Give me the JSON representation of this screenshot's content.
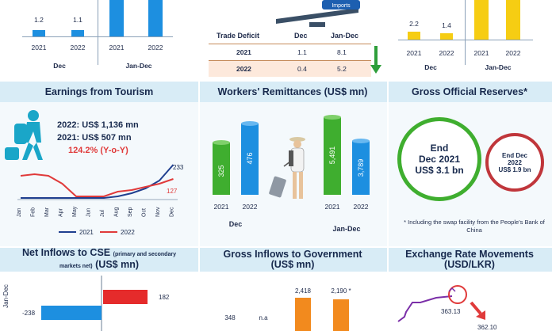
{
  "top": {
    "left_panel": {
      "small_values": [
        "1.2",
        "1.1"
      ],
      "years": [
        "2021",
        "2022",
        "2021",
        "2022"
      ],
      "group_labels": [
        "Dec",
        "Jan-Dec"
      ]
    },
    "right_panel": {
      "small_values": [
        "2.2",
        "1.4"
      ],
      "years": [
        "2021",
        "2022",
        "2021",
        "2022"
      ],
      "group_labels": [
        "Dec",
        "Jan-Dec"
      ]
    },
    "trade_table": {
      "headers": [
        "Trade Deficit",
        "Dec",
        "Jan-Dec"
      ],
      "rows": [
        {
          "year": "2021",
          "dec": "1.1",
          "jandec": "8.1"
        },
        {
          "year": "2022",
          "dec": "0.4",
          "jandec": "5.2"
        }
      ]
    },
    "scale_label": "Imports"
  },
  "tourism": {
    "title": "Earnings from Tourism",
    "stat_2022": "2022: US$ 1,136 mn",
    "stat_2021": "2021: US$ 507 mn",
    "growth": "124.2% (Y-o-Y)",
    "end_label_2021_line": "233",
    "end_label_2022_line": "127",
    "months": [
      "Jan",
      "Feb",
      "Mar",
      "Apr",
      "May",
      "Jun",
      "Jul",
      "Aug",
      "Sep",
      "Oct",
      "Nov",
      "Dec"
    ],
    "legend": [
      "2021",
      "2022"
    ],
    "colors": {
      "line_2021": "#1f3f8f",
      "line_2022": "#e03a3a"
    }
  },
  "remittances": {
    "title": "Workers' Remittances (US$ mn)",
    "values": [
      "325",
      "476",
      "5,491",
      "3,789"
    ],
    "years": [
      "2021",
      "2022",
      "2021",
      "2022"
    ],
    "groups": [
      "Dec",
      "Jan-Dec"
    ],
    "colors": {
      "green": "#3fae2f",
      "blue": "#1d8fe0"
    }
  },
  "reserves": {
    "title": "Gross Official Reserves*",
    "big_circle": {
      "l1": "End",
      "l2": "Dec 2021",
      "l3": "US$ 3.1 bn"
    },
    "small_circle": {
      "l1": "End Dec",
      "l2": "2022",
      "l3": "US$ 1.9 bn"
    },
    "footnote": "* Including the swap facility from the People's Bank of China",
    "colors": {
      "green": "#3fae2f",
      "red": "#c0363b"
    }
  },
  "cse": {
    "title_main": "Net Inflows to CSE",
    "title_small": "(primary and secondary",
    "title_line2_small": "markets net)",
    "title_line2_main": "(US$ mn)",
    "side_label": "Jan-Dec",
    "neg_value": "-238",
    "pos_value": "182"
  },
  "gov": {
    "title_l1": "Gross Inflows to Government",
    "title_l2": "(US$ mn)",
    "values": [
      "348",
      "n.a",
      "2,418",
      "2,190 *"
    ]
  },
  "fx": {
    "title_l1": "Exchange Rate Movements",
    "title_l2": "(USD/LKR)",
    "value_a": "363.13",
    "value_b": "362.10"
  },
  "colors": {
    "navy": "#17294d",
    "blue_bar": "#1d8fe0",
    "yellow_bar": "#f6cd13",
    "band": "#d8ecf6",
    "arrow_green": "#2e9e3a"
  }
}
